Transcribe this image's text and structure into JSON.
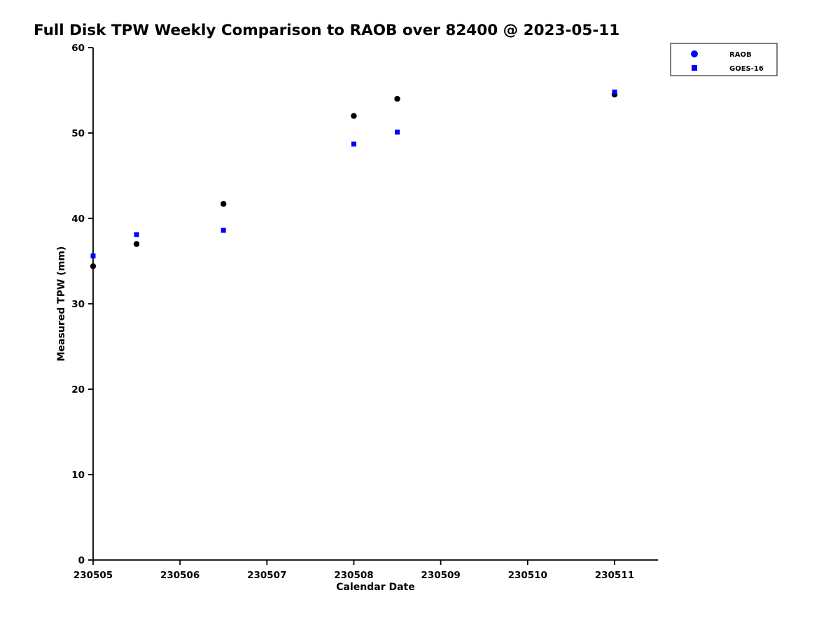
{
  "chart_data": {
    "type": "scatter",
    "title": "Full Disk TPW Weekly Comparison to RAOB over 82400 @ 2023-05-11",
    "xlabel": "Calendar Date",
    "ylabel": "Measured TPW (mm)",
    "xlim": [
      230505,
      230511.5
    ],
    "ylim": [
      0,
      60
    ],
    "xticks": [
      230505,
      230506,
      230507,
      230508,
      230509,
      230510,
      230511
    ],
    "yticks": [
      0,
      10,
      20,
      30,
      40,
      50,
      60
    ],
    "grid": false,
    "legend_position": "top-right",
    "axis_color": "#000000",
    "series": [
      {
        "name": "RAOB",
        "marker": "circle",
        "color": "#000000",
        "legend_marker_color": "#0000ff",
        "x": [
          230505.0,
          230505.5,
          230506.5,
          230508.0,
          230508.5,
          230511.0
        ],
        "y": [
          34.4,
          37.0,
          41.7,
          52.0,
          54.0,
          54.5
        ]
      },
      {
        "name": "GOES-16",
        "marker": "square",
        "color": "#0000ff",
        "legend_marker_color": "#0000ff",
        "x": [
          230505.0,
          230505.5,
          230506.5,
          230508.0,
          230508.5,
          230511.0
        ],
        "y": [
          35.6,
          38.1,
          38.6,
          48.7,
          50.1,
          54.8
        ]
      }
    ]
  }
}
